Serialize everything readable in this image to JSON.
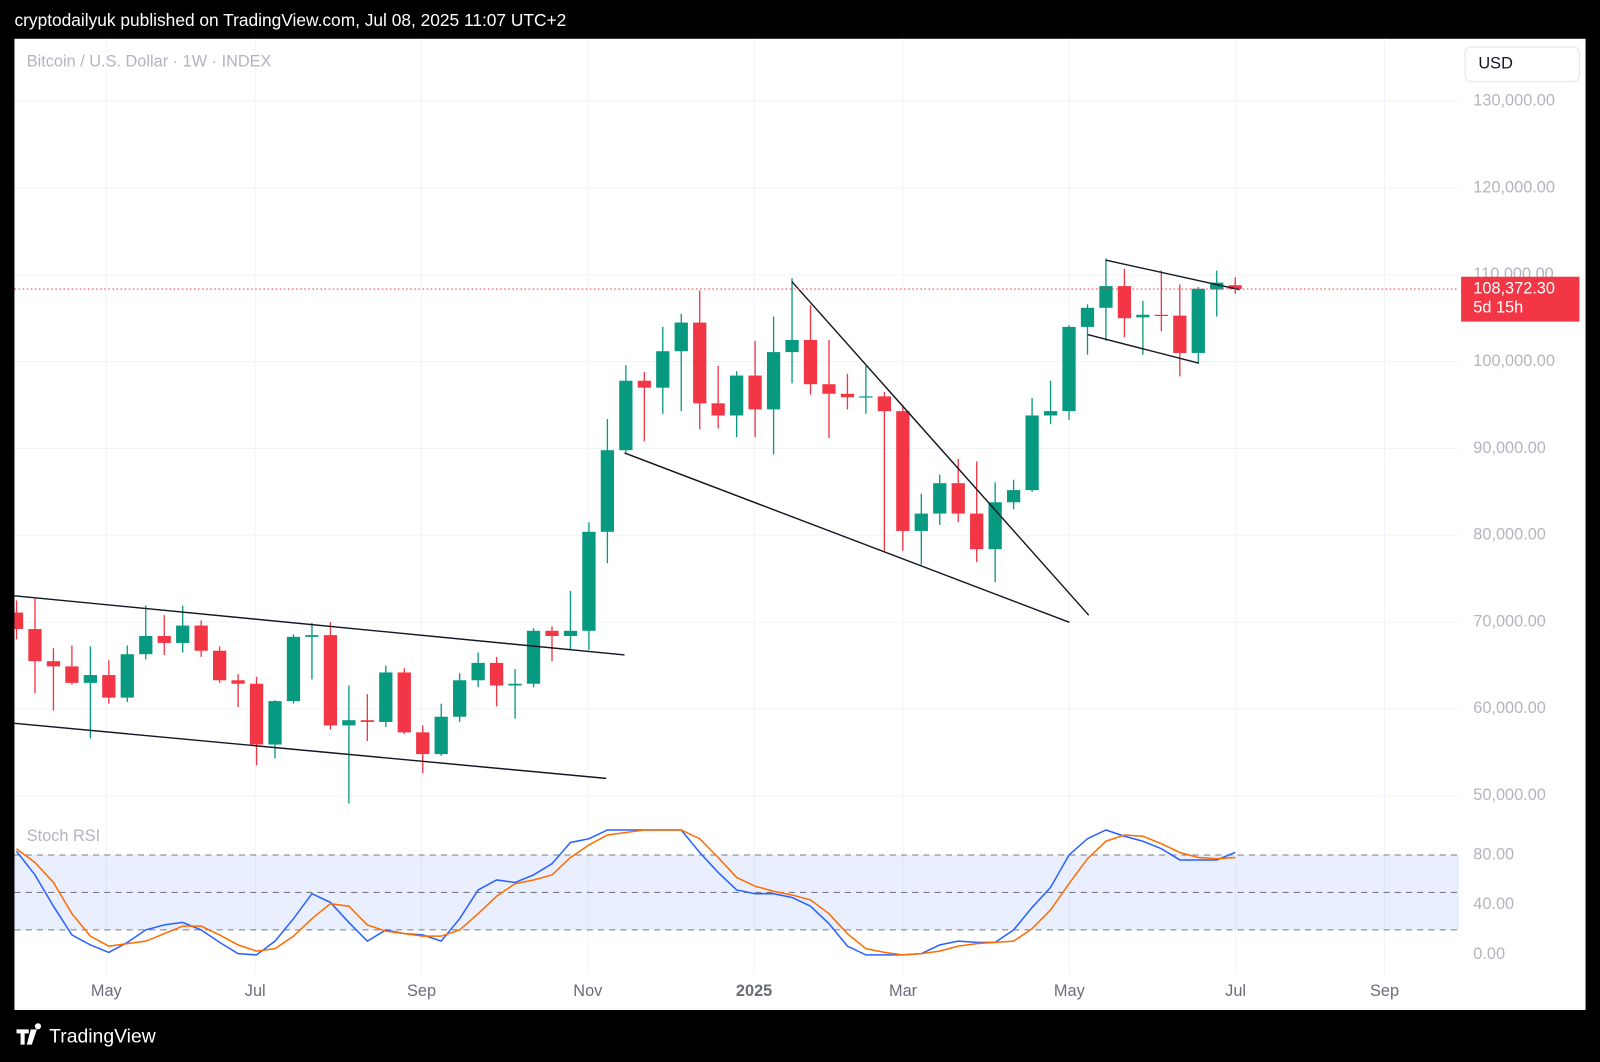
{
  "header": {
    "text": "cryptodailyuk published on TradingView.com, Jul 08, 2025 11:07 UTC+2"
  },
  "footer": {
    "brand": "TradingView"
  },
  "currency": "USD",
  "chart_data": [
    {
      "type": "candlestick",
      "title": "Bitcoin / U.S. Dollar · 1W · INDEX",
      "up_color": "#089981",
      "down_color": "#f23645",
      "open": [
        71100,
        69200,
        65500,
        64900,
        63000,
        63900,
        61300,
        66300,
        68400,
        67600,
        69600,
        66700,
        63300,
        62900,
        55900,
        60900,
        68300,
        68500,
        58100,
        58700,
        58500,
        64200,
        57300,
        54800,
        59100,
        63300,
        65300,
        62700,
        62900,
        69000,
        68400,
        69000,
        80400,
        89800,
        97800,
        97000,
        101200,
        104500,
        95200,
        93800,
        98400,
        94500,
        101100,
        102500,
        97400,
        96300,
        95900,
        96000,
        94300,
        80500,
        82500,
        86000,
        82500,
        78400,
        83800,
        85200,
        93800,
        94300,
        104000,
        106200,
        108700,
        105100,
        105400,
        105300,
        101000,
        108300,
        108800
      ],
      "high": [
        72500,
        72700,
        67000,
        67300,
        67200,
        65600,
        67300,
        71900,
        70800,
        71900,
        70200,
        67200,
        64000,
        63700,
        61000,
        68600,
        69900,
        70000,
        62700,
        61700,
        65000,
        64700,
        58100,
        60600,
        64100,
        66500,
        66000,
        64600,
        69300,
        69500,
        73600,
        81500,
        93400,
        99600,
        98800,
        104000,
        105500,
        108200,
        99500,
        98900,
        102400,
        105200,
        109600,
        106500,
        102500,
        98600,
        99500,
        96500,
        95000,
        84800,
        87000,
        88800,
        88500,
        86100,
        86400,
        95800,
        97800,
        104200,
        106600,
        111900,
        110700,
        107000,
        110500,
        108900,
        108600,
        110500,
        109700
      ],
      "low": [
        68000,
        61800,
        59800,
        62800,
        56600,
        60600,
        60800,
        65700,
        66200,
        66500,
        66000,
        63000,
        60200,
        53500,
        54300,
        60600,
        63400,
        57600,
        49100,
        56300,
        57900,
        57100,
        52600,
        54600,
        58500,
        62500,
        60300,
        58900,
        62500,
        65500,
        66800,
        66800,
        76800,
        89400,
        90800,
        94000,
        94300,
        92200,
        92300,
        91300,
        91300,
        89300,
        97500,
        96200,
        91200,
        94500,
        94000,
        78200,
        78200,
        76600,
        81200,
        81500,
        76900,
        74600,
        83000,
        85000,
        92800,
        93300,
        100800,
        102400,
        102800,
        100800,
        103500,
        98300,
        99800,
        105200,
        107800
      ],
      "close": [
        69200,
        65500,
        64900,
        63000,
        63900,
        61300,
        66300,
        68400,
        67600,
        69600,
        66700,
        63300,
        62900,
        55900,
        60900,
        68300,
        68500,
        58100,
        58700,
        58500,
        64200,
        57300,
        54800,
        59100,
        63300,
        65300,
        62700,
        62900,
        69000,
        68400,
        69000,
        80400,
        89800,
        97800,
        97000,
        101200,
        104500,
        95200,
        93800,
        98400,
        94500,
        101100,
        102500,
        97400,
        96300,
        95900,
        96000,
        94300,
        80500,
        82500,
        86000,
        82500,
        78400,
        83800,
        85200,
        93800,
        94300,
        104000,
        106200,
        108700,
        105000,
        105400,
        105300,
        101000,
        108400,
        109100,
        108372.3
      ],
      "last_price": {
        "value": 108372.3,
        "label": "108,372.30"
      },
      "countdown": "5d 15h",
      "ylim": [
        47650,
        137190
      ],
      "yticks": [
        {
          "value": 50000,
          "label": "50,000.00"
        },
        {
          "value": 60000,
          "label": "60,000.00"
        },
        {
          "value": 70000,
          "label": "70,000.00"
        },
        {
          "value": 80000,
          "label": "80,000.00"
        },
        {
          "value": 90000,
          "label": "90,000.00"
        },
        {
          "value": 100000,
          "label": "100,000.00"
        },
        {
          "value": 110000,
          "label": "110,000.00"
        },
        {
          "value": 120000,
          "label": "120,000.00"
        },
        {
          "value": 130000,
          "label": "130,000.00"
        }
      ],
      "grid": true
    },
    {
      "type": "line",
      "title": "Stoch RSI",
      "series": [
        {
          "color": "#2962ff",
          "values": [
            83,
            64,
            39,
            16,
            8,
            2,
            10,
            20,
            24,
            26,
            20,
            10,
            1,
            0,
            11,
            29,
            49,
            42,
            26,
            11,
            20,
            17,
            16,
            11,
            29,
            52,
            60,
            58,
            64,
            73,
            90,
            93,
            100,
            100,
            100,
            100,
            100,
            82,
            66,
            52,
            49,
            49,
            46,
            39,
            25,
            7,
            0,
            0,
            0,
            1,
            8,
            11,
            10,
            10,
            20,
            38,
            54,
            80,
            93,
            100,
            95,
            91,
            85,
            76,
            76,
            76,
            82
          ]
        },
        {
          "color": "#ff6d00",
          "values": [
            85,
            74,
            58,
            33,
            15,
            7,
            9,
            11,
            17,
            23,
            23,
            16,
            8,
            3,
            5,
            15,
            29,
            41,
            39,
            24,
            19,
            17,
            15,
            15,
            20,
            33,
            47,
            57,
            60,
            64,
            78,
            88,
            96,
            98,
            100,
            100,
            100,
            93,
            78,
            62,
            55,
            51,
            48,
            44,
            33,
            17,
            5,
            2,
            0,
            1,
            3,
            7,
            9,
            10,
            11,
            21,
            36,
            57,
            77,
            91,
            96,
            95,
            89,
            82,
            78,
            77,
            78
          ]
        }
      ],
      "levels": [
        20,
        50,
        80
      ],
      "band_color": "#2962ff",
      "ylim": [
        -15.5,
        107
      ],
      "yticks": [
        {
          "value": 0,
          "label": "0.00"
        },
        {
          "value": 40,
          "label": "40.00"
        },
        {
          "value": 80,
          "label": "80.00"
        }
      ],
      "xtick_labels": [
        "May",
        "Jul",
        "Sep",
        "Nov",
        "2025",
        "Mar",
        "May",
        "Jul",
        "Sep"
      ]
    }
  ]
}
